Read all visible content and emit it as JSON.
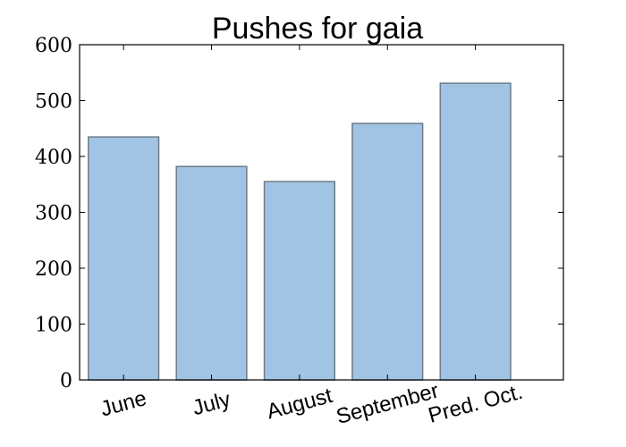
{
  "chart_data": {
    "type": "bar",
    "title": "Pushes for gaia",
    "categories": [
      "June",
      "July",
      "August",
      "September",
      "Pred. Oct."
    ],
    "values": [
      435,
      382,
      355,
      459,
      531
    ],
    "ylim": [
      0,
      600
    ],
    "yticks": [
      0,
      100,
      200,
      300,
      400,
      500,
      600
    ],
    "xlabel": "",
    "ylabel": "",
    "grid": false,
    "colors": {
      "bar_fill": "#a1c4e4",
      "bar_edge": "#6b7b89"
    }
  }
}
